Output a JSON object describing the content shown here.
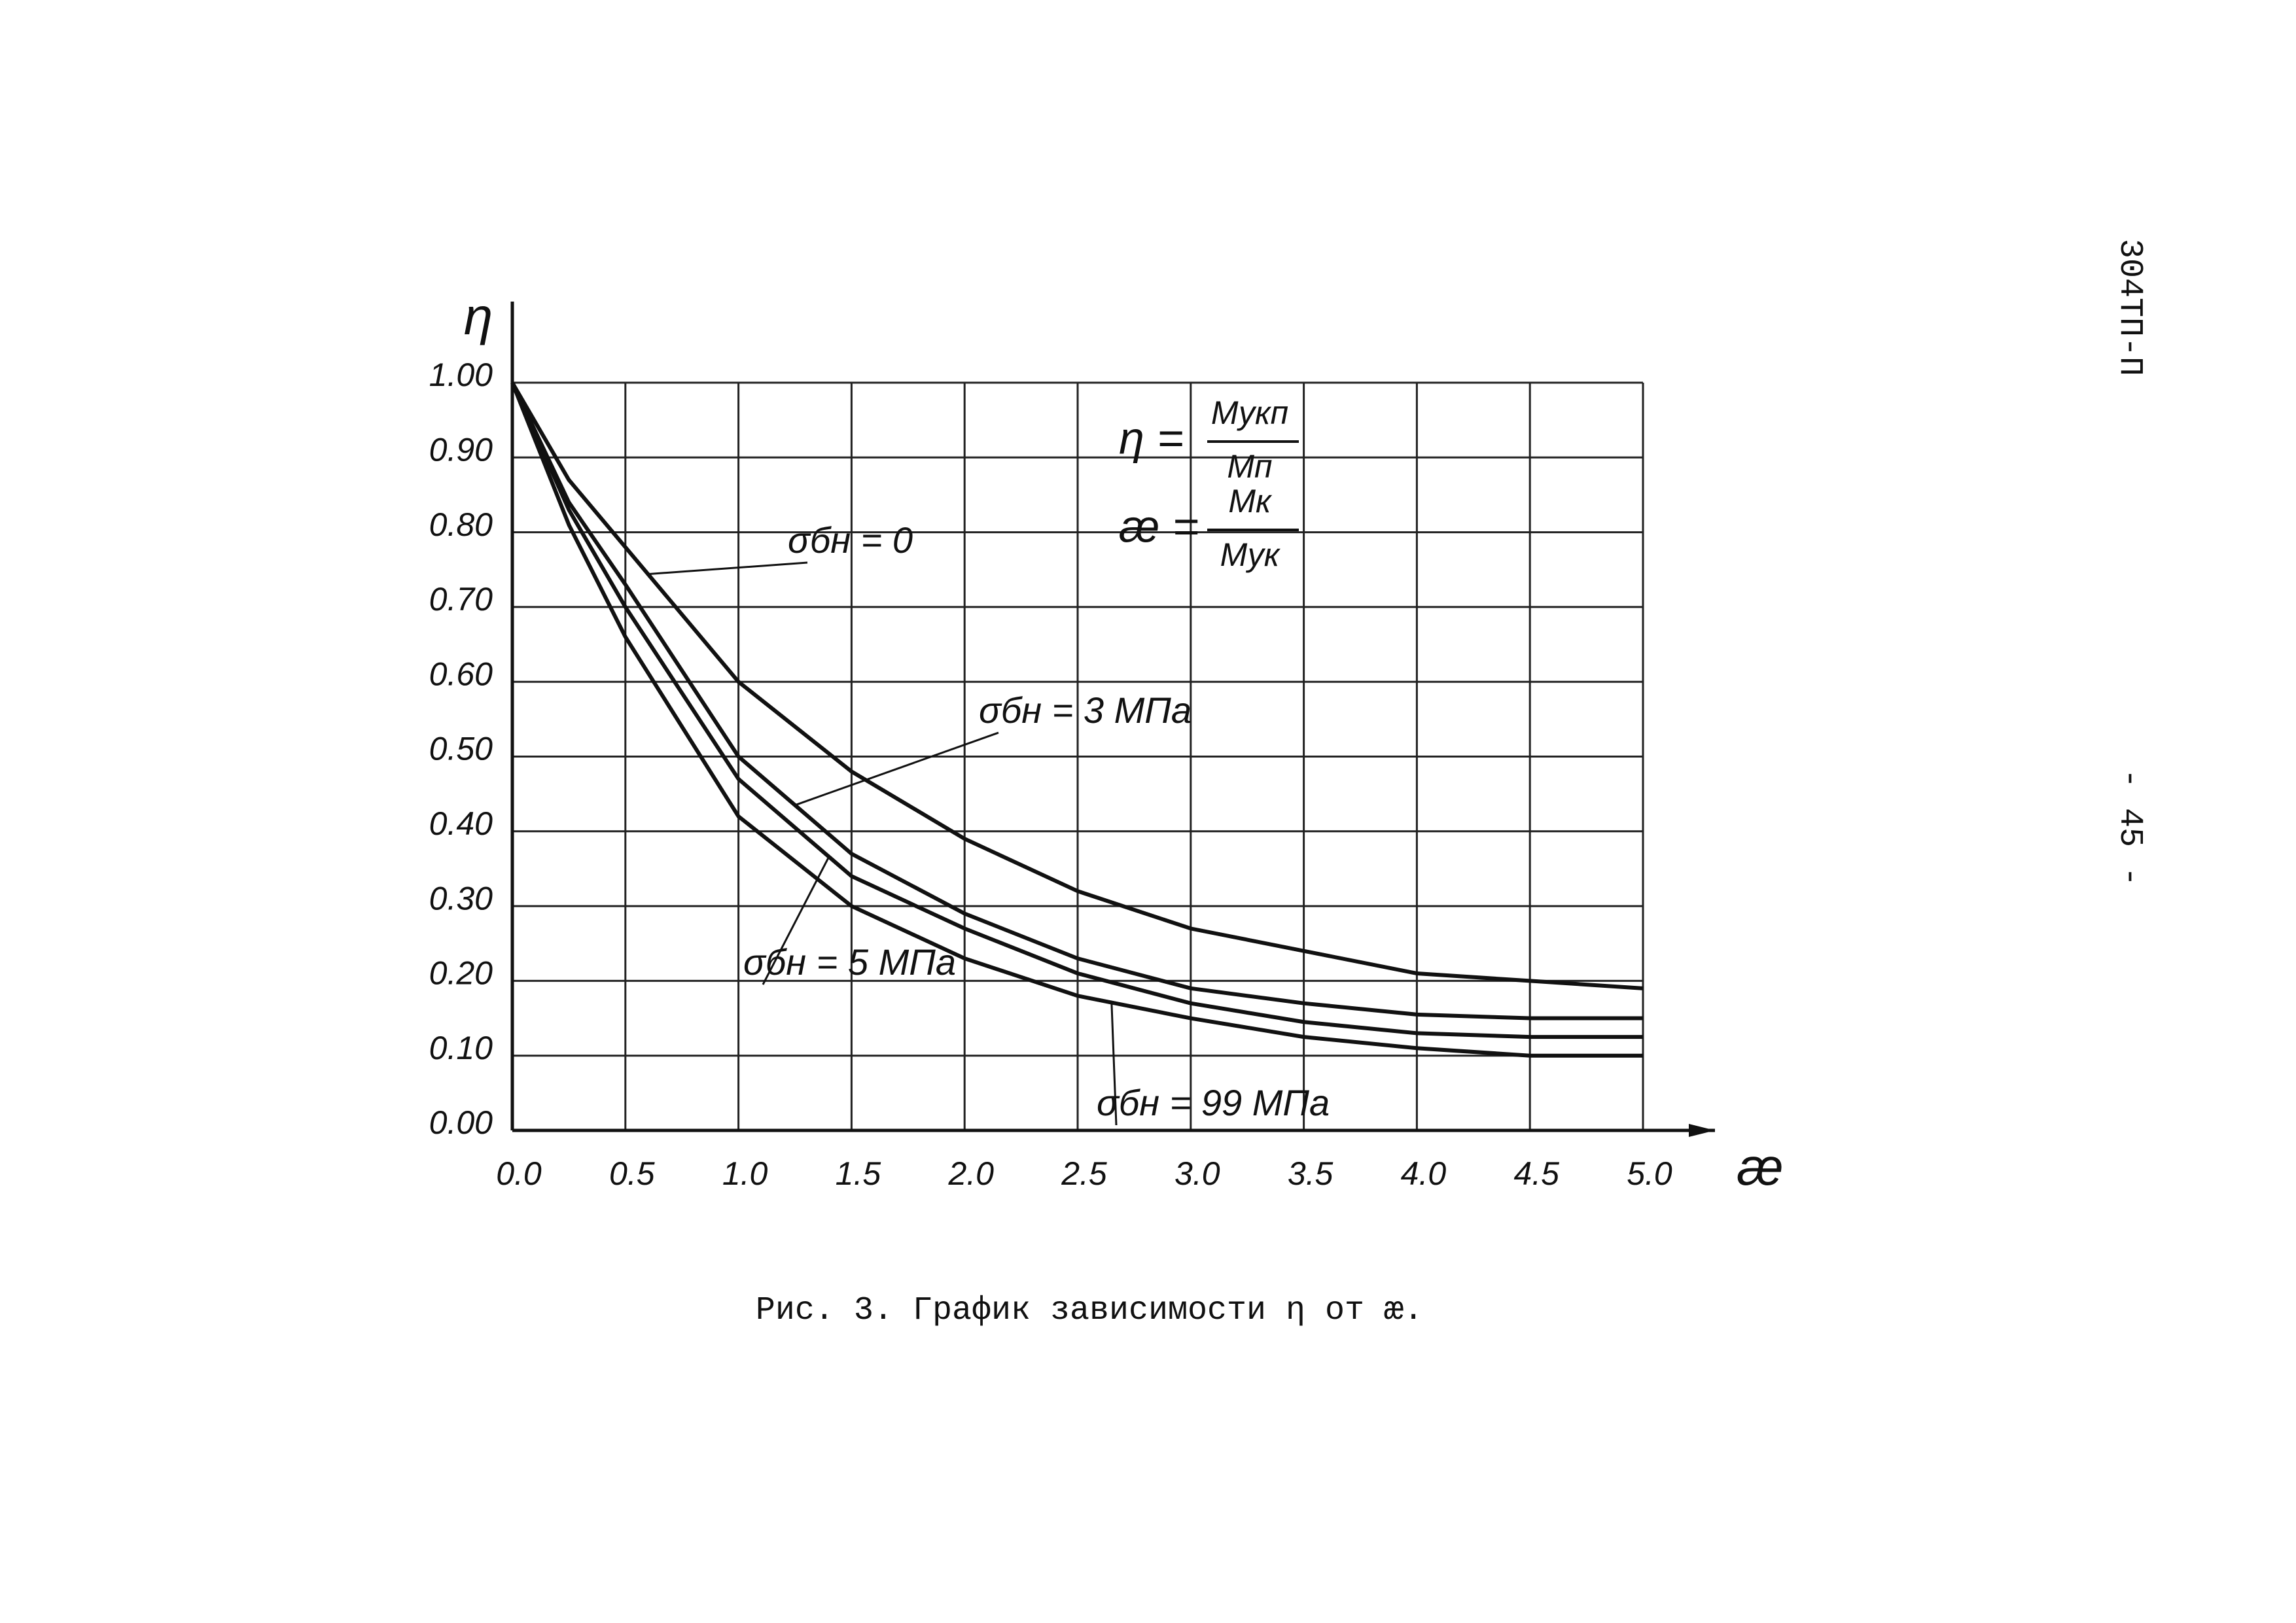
{
  "document_code": "304ТП-П",
  "page_number": "- 45 -",
  "chart_data": {
    "type": "line",
    "title": "Рис. 3. График зависимости η от æ.",
    "x_label": "æ",
    "y_label": "η",
    "annotations": [
      {
        "lhs": "η =",
        "num": "Мукп",
        "den": "Мп"
      },
      {
        "lhs": "æ =",
        "num": "Мк",
        "den": "Мук"
      }
    ],
    "x": [
      0,
      0.25,
      0.5,
      1.0,
      1.5,
      2.0,
      2.5,
      3.0,
      3.5,
      4.0,
      4.5,
      5.0
    ],
    "series": [
      {
        "name": "σбн = 0",
        "color": "#111111",
        "values": [
          1.0,
          0.87,
          0.78,
          0.6,
          0.48,
          0.39,
          0.32,
          0.27,
          0.24,
          0.21,
          0.2,
          0.19
        ]
      },
      {
        "name": "σбн = 3 МПа",
        "color": "#111111",
        "values": [
          1.0,
          0.84,
          0.73,
          0.5,
          0.37,
          0.29,
          0.23,
          0.19,
          0.17,
          0.155,
          0.15,
          0.15
        ]
      },
      {
        "name": "σбн = 5 МПа",
        "color": "#111111",
        "values": [
          1.0,
          0.83,
          0.7,
          0.47,
          0.34,
          0.27,
          0.21,
          0.17,
          0.145,
          0.13,
          0.125,
          0.125
        ]
      },
      {
        "name": "σбн = 99 МПа",
        "color": "#111111",
        "values": [
          1.0,
          0.81,
          0.66,
          0.42,
          0.3,
          0.23,
          0.18,
          0.15,
          0.125,
          0.11,
          0.1,
          0.1
        ]
      }
    ],
    "xlim": [
      0,
      5.0
    ],
    "ylim": [
      0,
      1.0
    ],
    "xticks": [
      {
        "value": 0,
        "label": "0.0"
      },
      0.5,
      {
        "value": 1,
        "label": "1.0"
      },
      1.5,
      {
        "value": 2,
        "label": "2.0"
      },
      2.5,
      {
        "value": 3,
        "label": "3.0"
      },
      3.5,
      {
        "value": 4,
        "label": "4.0"
      },
      4.5,
      {
        "value": 5,
        "label": "5.0"
      }
    ],
    "yticks": [
      {
        "value": 0,
        "label": "0.00"
      },
      {
        "value": 0.1,
        "label": "0.10"
      },
      {
        "value": 0.2,
        "label": "0.20"
      },
      {
        "value": 0.3,
        "label": "0.30"
      },
      {
        "value": 0.4,
        "label": "0.40"
      },
      {
        "value": 0.5,
        "label": "0.50"
      },
      {
        "value": 0.6,
        "label": "0.60"
      },
      {
        "value": 0.7,
        "label": "0.70"
      },
      {
        "value": 0.8,
        "label": "0.80"
      },
      {
        "value": 0.9,
        "label": "0.90"
      },
      {
        "value": 1,
        "label": "1.00"
      }
    ],
    "grid": true
  }
}
